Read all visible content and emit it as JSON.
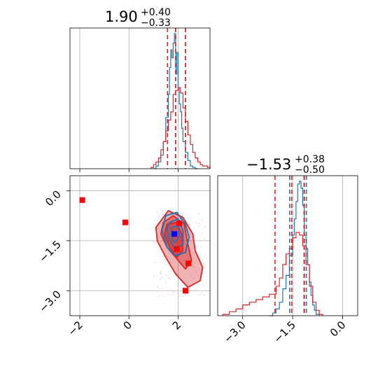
{
  "colors": {
    "blue": "#1f77b4",
    "red": "#d62728",
    "grid": "#b0b0b0",
    "marker_red": "#ff0000",
    "marker_blue": "#0000ff"
  },
  "titles": {
    "p1": {
      "main": "1.90",
      "plus": "+0.40",
      "minus": "−0.33"
    },
    "p2": {
      "main": "−1.53",
      "plus": "+0.38",
      "minus": "−0.50"
    }
  },
  "chart_data": [
    {
      "type": "histogram",
      "panel": "top-left",
      "xlim": [
        -2.4,
        3.3
      ],
      "x_ticks": [
        -2,
        0,
        2
      ],
      "grid": true,
      "series": [
        {
          "color": "blue",
          "bins": [
            1.0,
            1.1,
            1.2,
            1.3,
            1.4,
            1.5,
            1.6,
            1.65,
            1.7,
            1.75,
            1.8,
            1.85,
            1.9,
            1.95,
            2.0,
            2.05,
            2.1,
            2.15,
            2.2,
            2.3,
            2.4,
            2.5,
            2.6,
            2.7,
            2.8
          ],
          "values": [
            0,
            0.02,
            0.05,
            0.1,
            0.2,
            0.38,
            0.55,
            0.75,
            0.88,
            0.82,
            0.93,
            1.0,
            0.7,
            0.86,
            0.6,
            0.48,
            0.42,
            0.3,
            0.2,
            0.12,
            0.06,
            0.02,
            0.01,
            0
          ],
          "quantiles": [
            1.57,
            1.9,
            2.3
          ]
        },
        {
          "color": "red",
          "bins": [
            0.9,
            1.0,
            1.1,
            1.2,
            1.3,
            1.4,
            1.5,
            1.6,
            1.7,
            1.8,
            1.9,
            2.0,
            2.1,
            2.2,
            2.3,
            2.4,
            2.5,
            2.6,
            2.7,
            2.8,
            2.9,
            3.0,
            3.1,
            3.2,
            3.3
          ],
          "values": [
            0.01,
            0.03,
            0.05,
            0.08,
            0.14,
            0.2,
            0.28,
            0.36,
            0.42,
            0.55,
            0.58,
            0.6,
            0.56,
            0.45,
            0.35,
            0.25,
            0.18,
            0.12,
            0.08,
            0.05,
            0.03,
            0.02,
            0.02,
            0.01
          ],
          "quantiles": [
            1.57,
            1.9,
            2.3
          ]
        }
      ]
    },
    {
      "type": "histogram",
      "panel": "bottom-right",
      "xlim": [
        -3.75,
        0.45
      ],
      "x_ticks": [
        -3.0,
        -1.5,
        0.0
      ],
      "x_tick_labels": [
        "−3.0",
        "−1.5",
        "0.0"
      ],
      "grid": true,
      "series": [
        {
          "color": "blue",
          "bins": [
            -2.2,
            -2.1,
            -2.0,
            -1.9,
            -1.8,
            -1.7,
            -1.6,
            -1.5,
            -1.45,
            -1.4,
            -1.35,
            -1.3,
            -1.25,
            -1.2,
            -1.15,
            -1.1,
            -1.05,
            -1.0,
            -0.95,
            -0.9,
            -0.85,
            -0.8,
            -0.7
          ],
          "values": [
            0,
            0.02,
            0.05,
            0.1,
            0.2,
            0.3,
            0.45,
            0.6,
            0.72,
            0.85,
            0.98,
            1.0,
            0.95,
            0.82,
            0.6,
            0.5,
            0.38,
            0.25,
            0.15,
            0.08,
            0.04,
            0.01
          ],
          "quantiles": [
            -1.59,
            -1.16,
            -1.09
          ]
        },
        {
          "color": "red",
          "bins": [
            -3.6,
            -3.4,
            -3.2,
            -3.0,
            -2.8,
            -2.6,
            -2.4,
            -2.2,
            -2.0,
            -1.9,
            -1.8,
            -1.7,
            -1.6,
            -1.5,
            -1.4,
            -1.3,
            -1.2,
            -1.1,
            -1.0,
            -0.9,
            -0.8,
            -0.7,
            -0.6
          ],
          "values": [
            0.01,
            0.03,
            0.05,
            0.08,
            0.1,
            0.12,
            0.14,
            0.16,
            0.22,
            0.28,
            0.38,
            0.46,
            0.5,
            0.58,
            0.62,
            0.6,
            0.52,
            0.38,
            0.22,
            0.1,
            0.04,
            0.01
          ],
          "quantiles": [
            -2.03,
            -1.53,
            -1.15
          ]
        }
      ]
    },
    {
      "type": "scatter",
      "panel": "bottom-left",
      "xlim": [
        -2.4,
        3.3
      ],
      "ylim": [
        -3.75,
        0.45
      ],
      "x_ticks": [
        -2,
        0,
        2
      ],
      "x_tick_labels": [
        "−2",
        "0",
        "2"
      ],
      "y_ticks": [
        0.0,
        -1.5,
        -3.0
      ],
      "y_tick_labels": [
        "0.0",
        "−1.5",
        "−3.0"
      ],
      "grid": true,
      "contours": [
        {
          "color": "red",
          "points": [
            [
              1.3,
              -0.9
            ],
            [
              1.6,
              -0.6
            ],
            [
              2.2,
              -0.8
            ],
            [
              2.6,
              -1.3
            ],
            [
              2.7,
              -1.8
            ],
            [
              3.0,
              -2.3
            ],
            [
              2.9,
              -2.7
            ],
            [
              2.4,
              -2.9
            ],
            [
              1.9,
              -2.5
            ],
            [
              1.5,
              -2.0
            ],
            [
              1.15,
              -1.5
            ],
            [
              1.1,
              -1.1
            ]
          ]
        },
        {
          "color": "red",
          "points": [
            [
              1.4,
              -0.95
            ],
            [
              1.8,
              -0.75
            ],
            [
              2.25,
              -1.0
            ],
            [
              2.4,
              -1.6
            ],
            [
              2.55,
              -2.1
            ],
            [
              2.3,
              -2.35
            ],
            [
              1.9,
              -2.0
            ],
            [
              1.55,
              -1.7
            ],
            [
              1.3,
              -1.3
            ]
          ]
        },
        {
          "color": "red",
          "points": [
            [
              1.55,
              -1.0
            ],
            [
              1.95,
              -0.95
            ],
            [
              2.15,
              -1.3
            ],
            [
              2.2,
              -1.8
            ],
            [
              1.95,
              -2.0
            ],
            [
              1.65,
              -1.7
            ],
            [
              1.45,
              -1.3
            ]
          ]
        },
        {
          "color": "blue",
          "points": [
            [
              1.5,
              -0.75
            ],
            [
              1.95,
              -0.65
            ],
            [
              2.3,
              -1.0
            ],
            [
              2.45,
              -1.4
            ],
            [
              2.3,
              -1.85
            ],
            [
              1.9,
              -1.95
            ],
            [
              1.55,
              -1.7
            ],
            [
              1.35,
              -1.2
            ]
          ]
        },
        {
          "color": "blue",
          "points": [
            [
              1.65,
              -0.95
            ],
            [
              2.0,
              -0.85
            ],
            [
              2.2,
              -1.2
            ],
            [
              2.2,
              -1.6
            ],
            [
              1.9,
              -1.75
            ],
            [
              1.65,
              -1.5
            ],
            [
              1.55,
              -1.15
            ]
          ]
        },
        {
          "color": "blue",
          "points": [
            [
              1.75,
              -1.1
            ],
            [
              2.0,
              -1.05
            ],
            [
              2.05,
              -1.4
            ],
            [
              1.85,
              -1.55
            ],
            [
              1.7,
              -1.35
            ]
          ]
        }
      ],
      "markers": [
        {
          "color": "marker_red",
          "x": -1.9,
          "y": -0.28
        },
        {
          "color": "marker_red",
          "x": -0.15,
          "y": -0.95
        },
        {
          "color": "marker_red",
          "x": 2.05,
          "y": -0.98
        },
        {
          "color": "marker_red",
          "x": 2.42,
          "y": -2.18
        },
        {
          "color": "marker_red",
          "x": 2.3,
          "y": -3.0
        },
        {
          "color": "marker_red",
          "x": 1.95,
          "y": -1.75
        },
        {
          "color": "marker_blue",
          "x": 1.85,
          "y": -1.3
        }
      ]
    }
  ]
}
